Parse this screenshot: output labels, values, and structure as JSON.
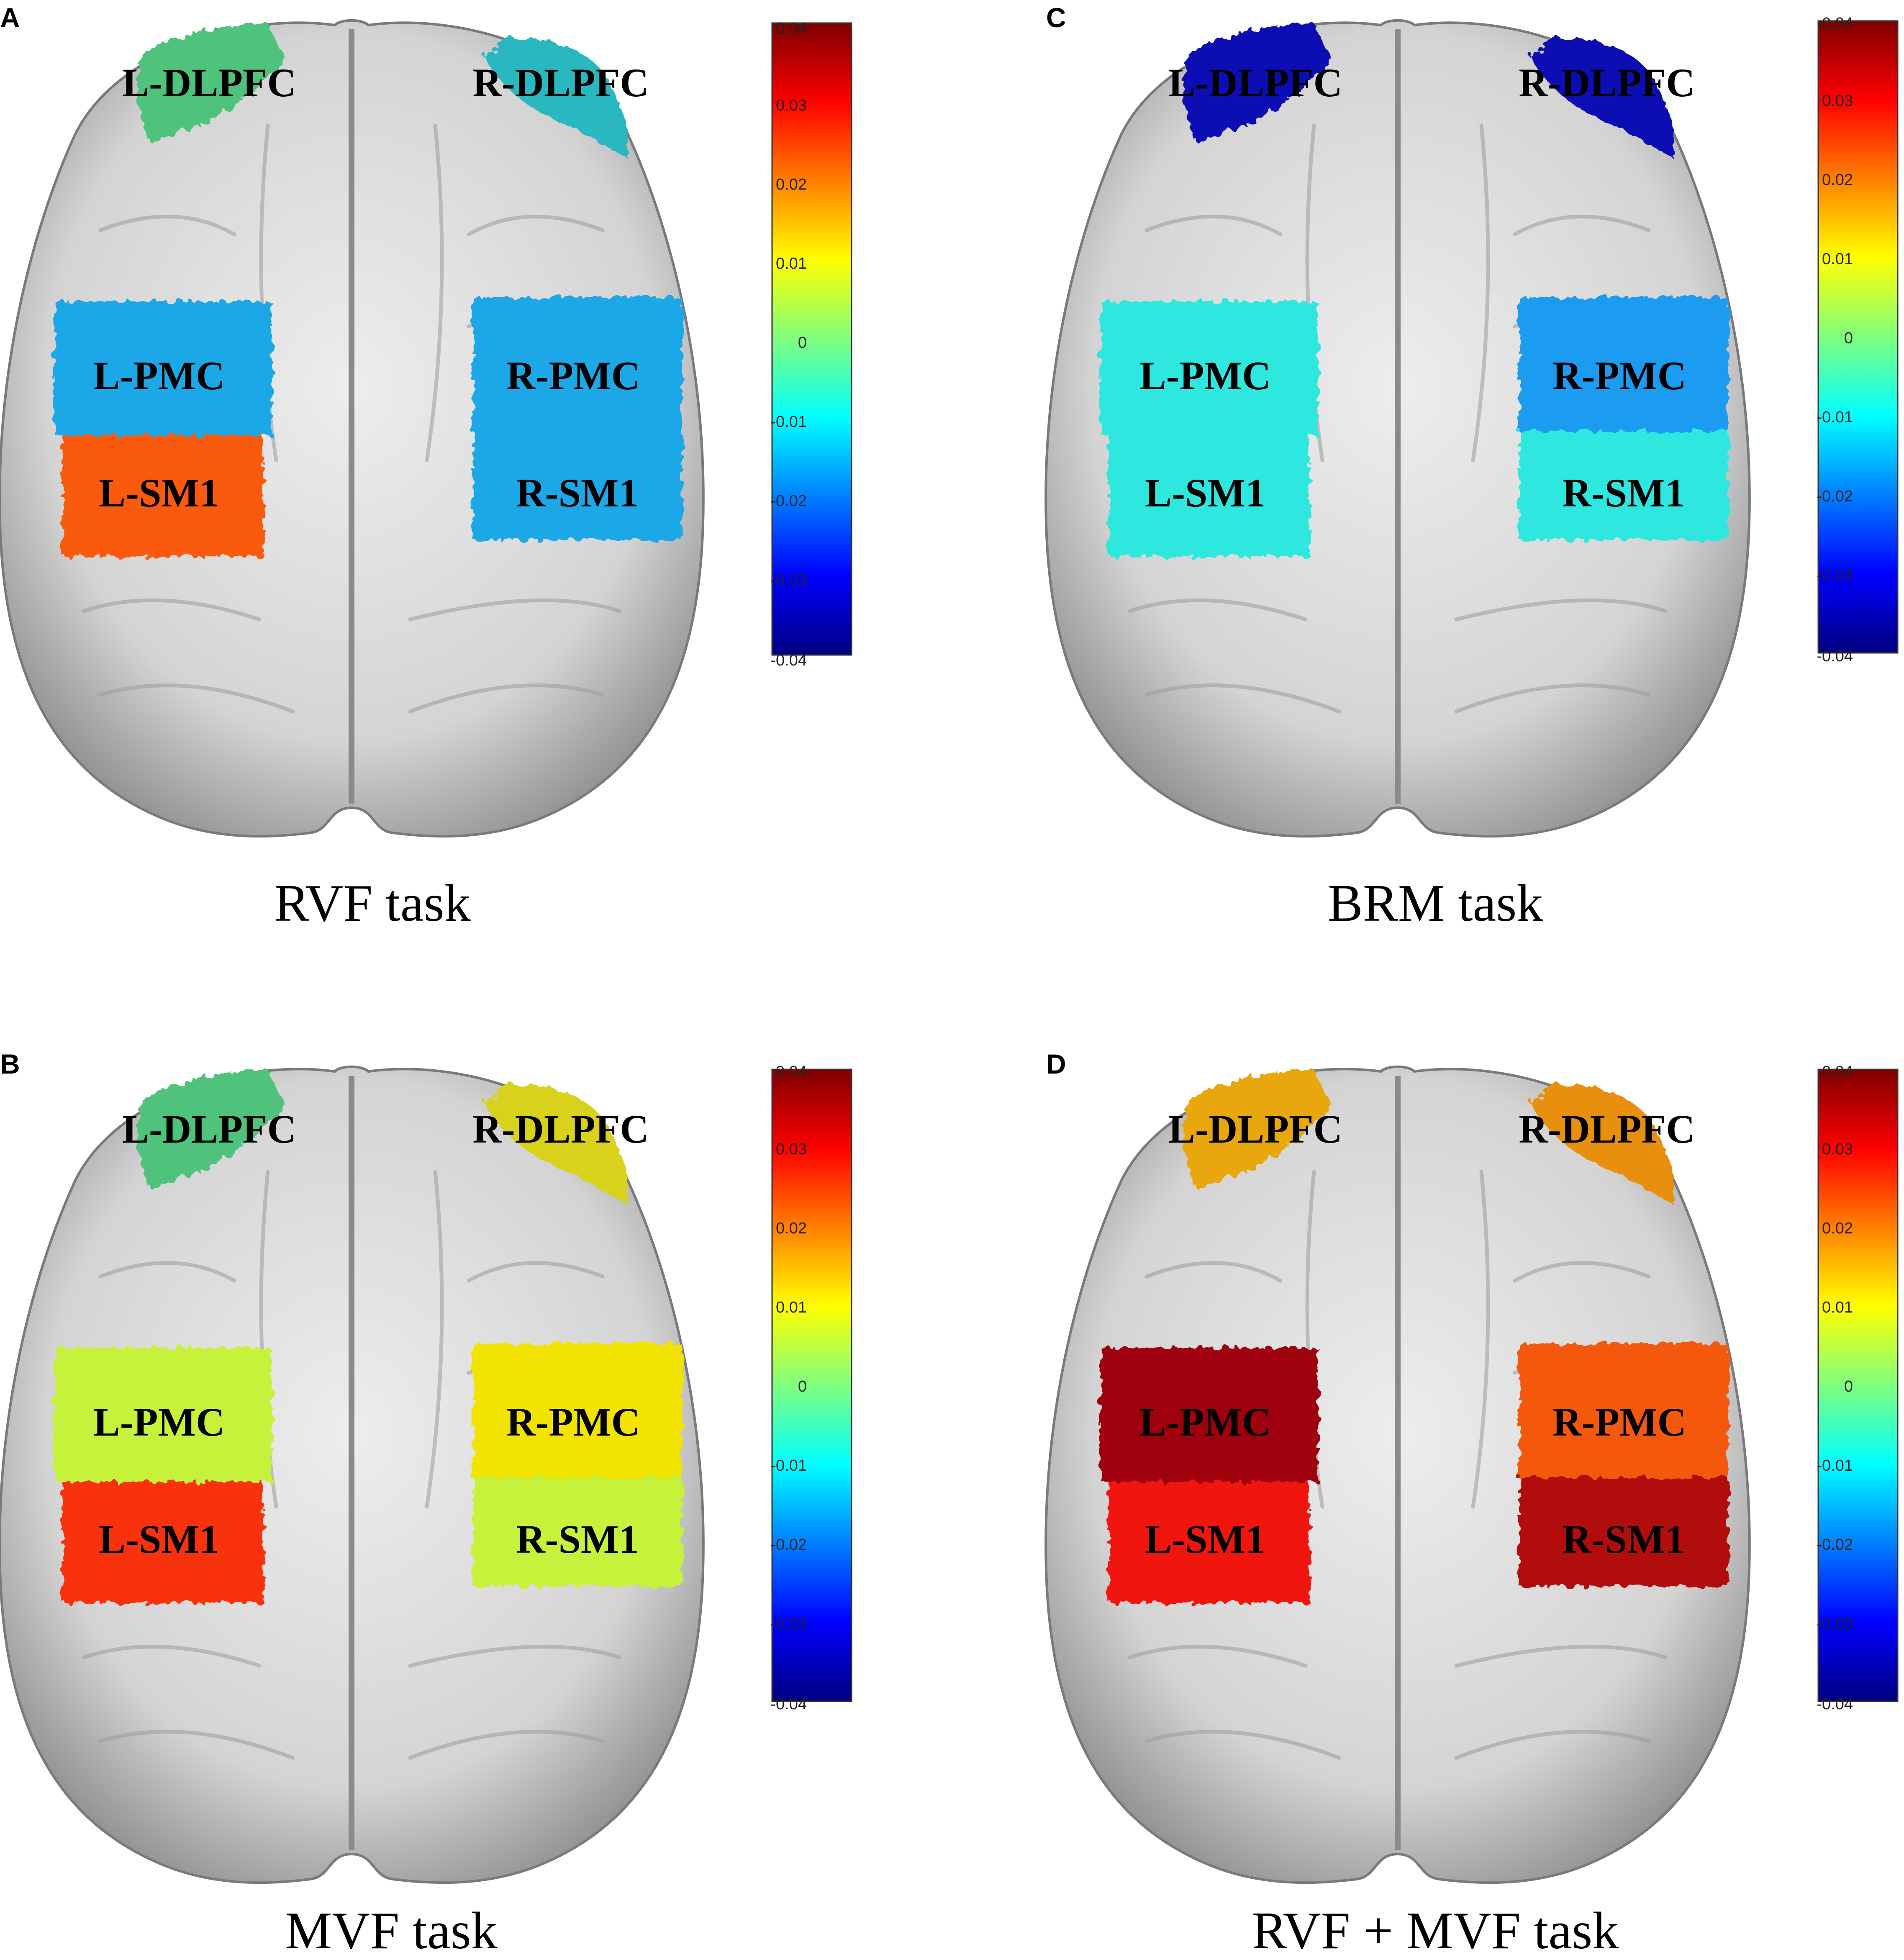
{
  "colorbar": {
    "range": [
      -0.04,
      0.04
    ],
    "ticks": [
      "0.04",
      "0.03",
      "0.02",
      "0.01",
      "0",
      "-0.01",
      "-0.02",
      "-0.03",
      "-0.04"
    ],
    "colormap": "jet",
    "stops": [
      "#00007f",
      "#0000ff",
      "#007fff",
      "#00ffff",
      "#7fff7f",
      "#ffff00",
      "#ff7f00",
      "#ff0000",
      "#7f0000"
    ]
  },
  "brain_colors": {
    "surface": "#d4d4d4",
    "surface_light": "#ededed",
    "surface_dark": "#8c8c8c"
  },
  "panels": [
    {
      "letter": "A",
      "caption": "RVF task",
      "regions": {
        "ldlpfc": {
          "label": "L-DLPFC",
          "value": -0.001,
          "color": "#4fc27c"
        },
        "rdlpfc": {
          "label": "R-DLPFC",
          "value": -0.007,
          "color": "#2ab8c0"
        },
        "lpmc": {
          "label": "L-PMC",
          "value": -0.015,
          "color": "#1aa7e6"
        },
        "rpmc": {
          "label": "R-PMC",
          "value": -0.015,
          "color": "#1aa7e6"
        },
        "lsm1": {
          "label": "L-SM1",
          "value": 0.025,
          "color": "#fa5a10"
        },
        "rsm1": {
          "label": "R-SM1",
          "value": -0.015,
          "color": "#1aa7e6"
        }
      }
    },
    {
      "letter": "C",
      "caption": "BRM task",
      "regions": {
        "ldlpfc": {
          "label": "L-DLPFC",
          "value": -0.036,
          "color": "#0a0fb4"
        },
        "rdlpfc": {
          "label": "R-DLPFC",
          "value": -0.036,
          "color": "#0a0fb4"
        },
        "lpmc": {
          "label": "L-PMC",
          "value": -0.008,
          "color": "#2ee8e0"
        },
        "rpmc": {
          "label": "R-PMC",
          "value": -0.016,
          "color": "#1a9cf0"
        },
        "lsm1": {
          "label": "L-SM1",
          "value": -0.008,
          "color": "#2ee8e0"
        },
        "rsm1": {
          "label": "R-SM1",
          "value": -0.008,
          "color": "#2ee8e0"
        }
      }
    },
    {
      "letter": "B",
      "caption": "MVF task",
      "regions": {
        "ldlpfc": {
          "label": "L-DLPFC",
          "value": -0.001,
          "color": "#4fc27c"
        },
        "rdlpfc": {
          "label": "R-DLPFC",
          "value": 0.01,
          "color": "#d9d21a"
        },
        "lpmc": {
          "label": "L-PMC",
          "value": 0.007,
          "color": "#c6f23a"
        },
        "rpmc": {
          "label": "R-PMC",
          "value": 0.013,
          "color": "#f2e400"
        },
        "lsm1": {
          "label": "L-SM1",
          "value": 0.029,
          "color": "#f8300e"
        },
        "rsm1": {
          "label": "R-SM1",
          "value": 0.007,
          "color": "#c6f23a"
        }
      }
    },
    {
      "letter": "D",
      "caption": "RVF + MVF task",
      "regions": {
        "ldlpfc": {
          "label": "L-DLPFC",
          "value": 0.016,
          "color": "#e8a80a"
        },
        "rdlpfc": {
          "label": "R-DLPFC",
          "value": 0.019,
          "color": "#e88f0a"
        },
        "lpmc": {
          "label": "L-PMC",
          "value": 0.038,
          "color": "#9e0608"
        },
        "rpmc": {
          "label": "R-PMC",
          "value": 0.026,
          "color": "#f4580e"
        },
        "lsm1": {
          "label": "L-SM1",
          "value": 0.032,
          "color": "#f01810"
        },
        "rsm1": {
          "label": "R-SM1",
          "value": 0.036,
          "color": "#b20a0a"
        }
      }
    }
  ]
}
